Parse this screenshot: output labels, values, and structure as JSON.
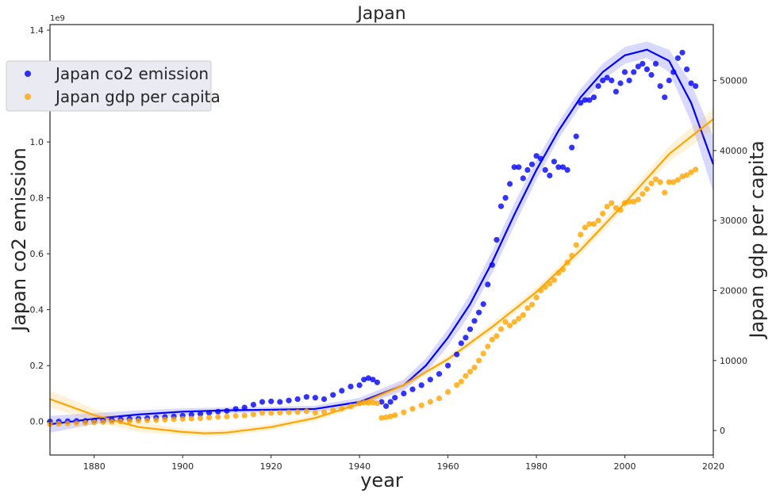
{
  "chart_data": {
    "type": "scatter",
    "title": "Japan",
    "xlabel": "year",
    "ylabel_left": "Japan co2 emission",
    "ylabel_right": "Japan gdp per capita",
    "left_axis_multiplier": "1e9",
    "xlim": [
      1870,
      2020
    ],
    "ylim_left": [
      -0.12,
      1.42
    ],
    "ylim_right": [
      -3500,
      58000
    ],
    "x_ticks": [
      1880,
      1900,
      1920,
      1940,
      1960,
      1980,
      2000,
      2020
    ],
    "left_ticks": [
      0.0,
      0.2,
      0.4,
      0.6,
      0.8,
      1.0,
      1.2,
      1.4
    ],
    "right_ticks": [
      0,
      10000,
      20000,
      30000,
      40000,
      50000
    ],
    "legend_placement": "upper-left",
    "grid": false,
    "series": [
      {
        "name": "Japan co2 emission",
        "color": "#0000ff",
        "axis": "left",
        "points": [
          [
            1870,
            0.0
          ],
          [
            1872,
            0.0
          ],
          [
            1874,
            0.001
          ],
          [
            1876,
            0.002
          ],
          [
            1878,
            0.002
          ],
          [
            1880,
            0.003
          ],
          [
            1882,
            0.004
          ],
          [
            1884,
            0.005
          ],
          [
            1886,
            0.007
          ],
          [
            1888,
            0.009
          ],
          [
            1890,
            0.01
          ],
          [
            1892,
            0.012
          ],
          [
            1894,
            0.014
          ],
          [
            1896,
            0.016
          ],
          [
            1898,
            0.018
          ],
          [
            1900,
            0.021
          ],
          [
            1902,
            0.024
          ],
          [
            1904,
            0.027
          ],
          [
            1906,
            0.031
          ],
          [
            1908,
            0.035
          ],
          [
            1910,
            0.038
          ],
          [
            1912,
            0.045
          ],
          [
            1914,
            0.05
          ],
          [
            1916,
            0.06
          ],
          [
            1918,
            0.07
          ],
          [
            1920,
            0.072
          ],
          [
            1922,
            0.07
          ],
          [
            1924,
            0.075
          ],
          [
            1926,
            0.08
          ],
          [
            1928,
            0.088
          ],
          [
            1930,
            0.085
          ],
          [
            1932,
            0.08
          ],
          [
            1934,
            0.095
          ],
          [
            1936,
            0.11
          ],
          [
            1938,
            0.125
          ],
          [
            1940,
            0.13
          ],
          [
            1941,
            0.15
          ],
          [
            1942,
            0.155
          ],
          [
            1943,
            0.15
          ],
          [
            1944,
            0.14
          ],
          [
            1945,
            0.07
          ],
          [
            1946,
            0.055
          ],
          [
            1947,
            0.07
          ],
          [
            1948,
            0.085
          ],
          [
            1950,
            0.1
          ],
          [
            1952,
            0.115
          ],
          [
            1954,
            0.13
          ],
          [
            1956,
            0.15
          ],
          [
            1958,
            0.17
          ],
          [
            1960,
            0.2
          ],
          [
            1962,
            0.24
          ],
          [
            1963,
            0.28
          ],
          [
            1964,
            0.3
          ],
          [
            1965,
            0.33
          ],
          [
            1966,
            0.36
          ],
          [
            1967,
            0.39
          ],
          [
            1968,
            0.42
          ],
          [
            1969,
            0.49
          ],
          [
            1970,
            0.56
          ],
          [
            1971,
            0.65
          ],
          [
            1972,
            0.77
          ],
          [
            1973,
            0.8
          ],
          [
            1974,
            0.85
          ],
          [
            1975,
            0.91
          ],
          [
            1976,
            0.91
          ],
          [
            1977,
            0.87
          ],
          [
            1978,
            0.9
          ],
          [
            1979,
            0.92
          ],
          [
            1980,
            0.95
          ],
          [
            1981,
            0.94
          ],
          [
            1982,
            0.9
          ],
          [
            1983,
            0.88
          ],
          [
            1984,
            0.93
          ],
          [
            1985,
            0.91
          ],
          [
            1986,
            0.91
          ],
          [
            1987,
            0.9
          ],
          [
            1988,
            0.98
          ],
          [
            1989,
            1.02
          ],
          [
            1990,
            1.14
          ],
          [
            1991,
            1.15
          ],
          [
            1992,
            1.15
          ],
          [
            1993,
            1.16
          ],
          [
            1994,
            1.2
          ],
          [
            1995,
            1.22
          ],
          [
            1996,
            1.23
          ],
          [
            1997,
            1.22
          ],
          [
            1998,
            1.18
          ],
          [
            1999,
            1.21
          ],
          [
            2000,
            1.25
          ],
          [
            2001,
            1.22
          ],
          [
            2002,
            1.25
          ],
          [
            2003,
            1.27
          ],
          [
            2004,
            1.28
          ],
          [
            2005,
            1.26
          ],
          [
            2006,
            1.24
          ],
          [
            2007,
            1.28
          ],
          [
            2008,
            1.2
          ],
          [
            2009,
            1.16
          ],
          [
            2010,
            1.22
          ],
          [
            2011,
            1.25
          ],
          [
            2012,
            1.3
          ],
          [
            2013,
            1.32
          ],
          [
            2014,
            1.26
          ],
          [
            2015,
            1.21
          ],
          [
            2016,
            1.2
          ]
        ]
      },
      {
        "name": "Japan gdp per capita",
        "color": "#ffa500",
        "axis": "right",
        "points": [
          [
            1870,
            900
          ],
          [
            1872,
            950
          ],
          [
            1874,
            1000
          ],
          [
            1876,
            1050
          ],
          [
            1878,
            1100
          ],
          [
            1880,
            1150
          ],
          [
            1882,
            1200
          ],
          [
            1884,
            1250
          ],
          [
            1886,
            1300
          ],
          [
            1888,
            1350
          ],
          [
            1890,
            1400
          ],
          [
            1892,
            1450
          ],
          [
            1894,
            1500
          ],
          [
            1896,
            1550
          ],
          [
            1898,
            1600
          ],
          [
            1900,
            1650
          ],
          [
            1902,
            1700
          ],
          [
            1904,
            1750
          ],
          [
            1906,
            1850
          ],
          [
            1908,
            1950
          ],
          [
            1910,
            2000
          ],
          [
            1912,
            2100
          ],
          [
            1914,
            2150
          ],
          [
            1916,
            2300
          ],
          [
            1918,
            2500
          ],
          [
            1920,
            2500
          ],
          [
            1922,
            2550
          ],
          [
            1924,
            2600
          ],
          [
            1926,
            2650
          ],
          [
            1928,
            2750
          ],
          [
            1930,
            2550
          ],
          [
            1932,
            2650
          ],
          [
            1934,
            2900
          ],
          [
            1936,
            3150
          ],
          [
            1938,
            3450
          ],
          [
            1940,
            3900
          ],
          [
            1941,
            4000
          ],
          [
            1942,
            3950
          ],
          [
            1943,
            4000
          ],
          [
            1944,
            3900
          ],
          [
            1945,
            1800
          ],
          [
            1946,
            1900
          ],
          [
            1947,
            2000
          ],
          [
            1948,
            2200
          ],
          [
            1950,
            2600
          ],
          [
            1952,
            3100
          ],
          [
            1954,
            3600
          ],
          [
            1956,
            4100
          ],
          [
            1958,
            4600
          ],
          [
            1960,
            5500
          ],
          [
            1962,
            6500
          ],
          [
            1963,
            7000
          ],
          [
            1964,
            7800
          ],
          [
            1965,
            8400
          ],
          [
            1966,
            9000
          ],
          [
            1967,
            10000
          ],
          [
            1968,
            11000
          ],
          [
            1969,
            12000
          ],
          [
            1970,
            13000
          ],
          [
            1971,
            13500
          ],
          [
            1972,
            14500
          ],
          [
            1973,
            15500
          ],
          [
            1974,
            15000
          ],
          [
            1975,
            15500
          ],
          [
            1976,
            16000
          ],
          [
            1977,
            16500
          ],
          [
            1978,
            17500
          ],
          [
            1979,
            18000
          ],
          [
            1980,
            19000
          ],
          [
            1981,
            20000
          ],
          [
            1982,
            20500
          ],
          [
            1983,
            21000
          ],
          [
            1984,
            21500
          ],
          [
            1985,
            22500
          ],
          [
            1986,
            23000
          ],
          [
            1987,
            24000
          ],
          [
            1988,
            25000
          ],
          [
            1989,
            26500
          ],
          [
            1990,
            28000
          ],
          [
            1991,
            29000
          ],
          [
            1992,
            29500
          ],
          [
            1993,
            29500
          ],
          [
            1994,
            30000
          ],
          [
            1995,
            31000
          ],
          [
            1996,
            32000
          ],
          [
            1997,
            32500
          ],
          [
            1998,
            31800
          ],
          [
            1999,
            31500
          ],
          [
            2000,
            32500
          ],
          [
            2001,
            32700
          ],
          [
            2002,
            32700
          ],
          [
            2003,
            33000
          ],
          [
            2004,
            33800
          ],
          [
            2005,
            34500
          ],
          [
            2006,
            35300
          ],
          [
            2007,
            35900
          ],
          [
            2008,
            35500
          ],
          [
            2009,
            34000
          ],
          [
            2010,
            35500
          ],
          [
            2011,
            35500
          ],
          [
            2012,
            35800
          ],
          [
            2013,
            36300
          ],
          [
            2014,
            36500
          ],
          [
            2015,
            36900
          ],
          [
            2016,
            37300
          ]
        ]
      }
    ],
    "fits": [
      {
        "color": "#0000ff",
        "axis": "left",
        "points": [
          [
            1870,
            -0.01
          ],
          [
            1880,
            0.01
          ],
          [
            1890,
            0.025
          ],
          [
            1900,
            0.035
          ],
          [
            1910,
            0.04
          ],
          [
            1920,
            0.042
          ],
          [
            1930,
            0.045
          ],
          [
            1940,
            0.07
          ],
          [
            1950,
            0.13
          ],
          [
            1955,
            0.2
          ],
          [
            1960,
            0.3
          ],
          [
            1965,
            0.42
          ],
          [
            1970,
            0.57
          ],
          [
            1975,
            0.74
          ],
          [
            1980,
            0.9
          ],
          [
            1985,
            1.04
          ],
          [
            1990,
            1.16
          ],
          [
            1995,
            1.25
          ],
          [
            2000,
            1.31
          ],
          [
            2005,
            1.33
          ],
          [
            2010,
            1.29
          ],
          [
            2015,
            1.14
          ],
          [
            2020,
            0.92
          ]
        ],
        "ci": [
          0.03,
          0.02,
          0.015,
          0.012,
          0.01,
          0.01,
          0.012,
          0.015,
          0.02,
          0.025,
          0.03,
          0.035,
          0.04,
          0.04,
          0.035,
          0.03,
          0.03,
          0.03,
          0.03,
          0.03,
          0.04,
          0.07,
          0.1
        ]
      },
      {
        "color": "#ffa500",
        "axis": "right",
        "points": [
          [
            1870,
            4500
          ],
          [
            1880,
            2200
          ],
          [
            1890,
            500
          ],
          [
            1900,
            -200
          ],
          [
            1905,
            -400
          ],
          [
            1910,
            -300
          ],
          [
            1920,
            500
          ],
          [
            1930,
            1800
          ],
          [
            1940,
            3800
          ],
          [
            1950,
            6500
          ],
          [
            1960,
            10200
          ],
          [
            1970,
            14800
          ],
          [
            1980,
            19800
          ],
          [
            1990,
            25800
          ],
          [
            2000,
            32500
          ],
          [
            2010,
            39500
          ],
          [
            2020,
            44500
          ]
        ],
        "ci": [
          1200,
          900,
          700,
          500,
          450,
          450,
          450,
          450,
          450,
          450,
          500,
          600,
          650,
          700,
          800,
          1100,
          1500
        ]
      }
    ]
  }
}
